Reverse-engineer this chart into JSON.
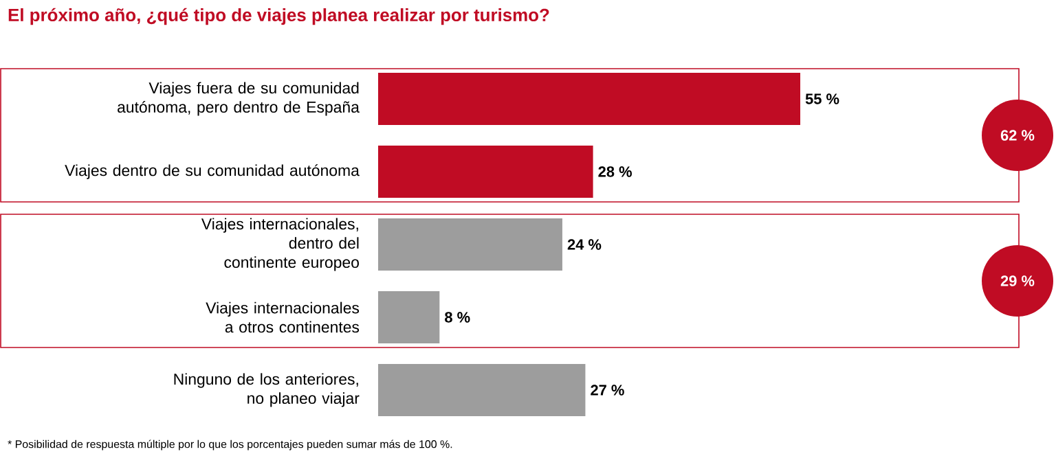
{
  "chart_data": {
    "type": "bar",
    "orientation": "horizontal",
    "title": "El próximo año, ¿qué tipo de viajes planea realizar por turismo?",
    "categories": [
      "Viajes fuera de su comunidad autónoma, pero dentro de España",
      "Viajes dentro de su comunidad autónoma",
      "Viajes internacionales, dentro del continente europeo",
      "Viajes internacionales a otros continentes",
      "Ninguno de los anteriores, no planeo viajar"
    ],
    "values": [
      55,
      28,
      24,
      8,
      27
    ],
    "colors": [
      "#c00c24",
      "#c00c24",
      "#9d9d9d",
      "#9d9d9d",
      "#9d9d9d"
    ],
    "value_labels": [
      "55 %",
      "28 %",
      "24 %",
      "8 %",
      "27 %"
    ],
    "annotations": [
      "62 %",
      "29 %",
      "* Posibilidad de respuesta múltiple por lo que los porcentajes pueden sumar más de 100 %."
    ]
  }
}
